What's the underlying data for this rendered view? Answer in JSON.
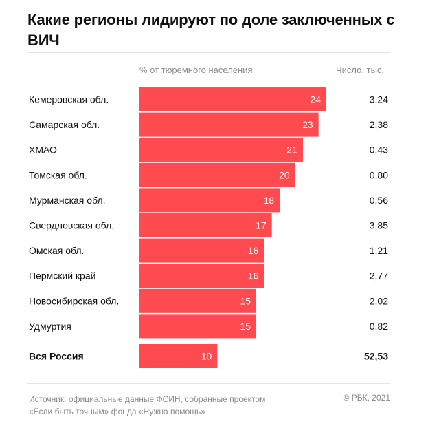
{
  "title": "Какие регионы лидируют по доле заключенных с ВИЧ",
  "header": {
    "pct_label": "% от тюремного населения",
    "count_label": "Число, тыс."
  },
  "chart_data": {
    "type": "bar",
    "orientation": "horizontal",
    "title": "Какие регионы лидируют по доле заключенных с ВИЧ",
    "xlabel": "% от тюремного населения",
    "categories": [
      "Кемеровская обл.",
      "Самарская обл.",
      "ХМАО",
      "Томская обл.",
      "Мурманская обл.",
      "Свердловская обл.",
      "Омская обл.",
      "Пермский край",
      "Новосибирская обл.",
      "Удмуртия"
    ],
    "values": [
      24,
      23,
      21,
      20,
      18,
      17,
      16,
      16,
      15,
      15
    ],
    "counts": [
      "3,24",
      "2,38",
      "0,43",
      "0,80",
      "0,56",
      "3,85",
      "1,21",
      "2,77",
      "2,02",
      "0,82"
    ],
    "total": {
      "category": "Вся Россия",
      "value": 10,
      "count": "52,53"
    },
    "bar_color": "#ff4a4f",
    "xlim": [
      0,
      24
    ]
  },
  "footer": {
    "source_line1": "Источник:  официальные данные ФСИН, собранные проектом",
    "source_line2": "«Если быть точным» фонда «Нужна помощь»",
    "copyright": "©  РБК, 2021"
  }
}
